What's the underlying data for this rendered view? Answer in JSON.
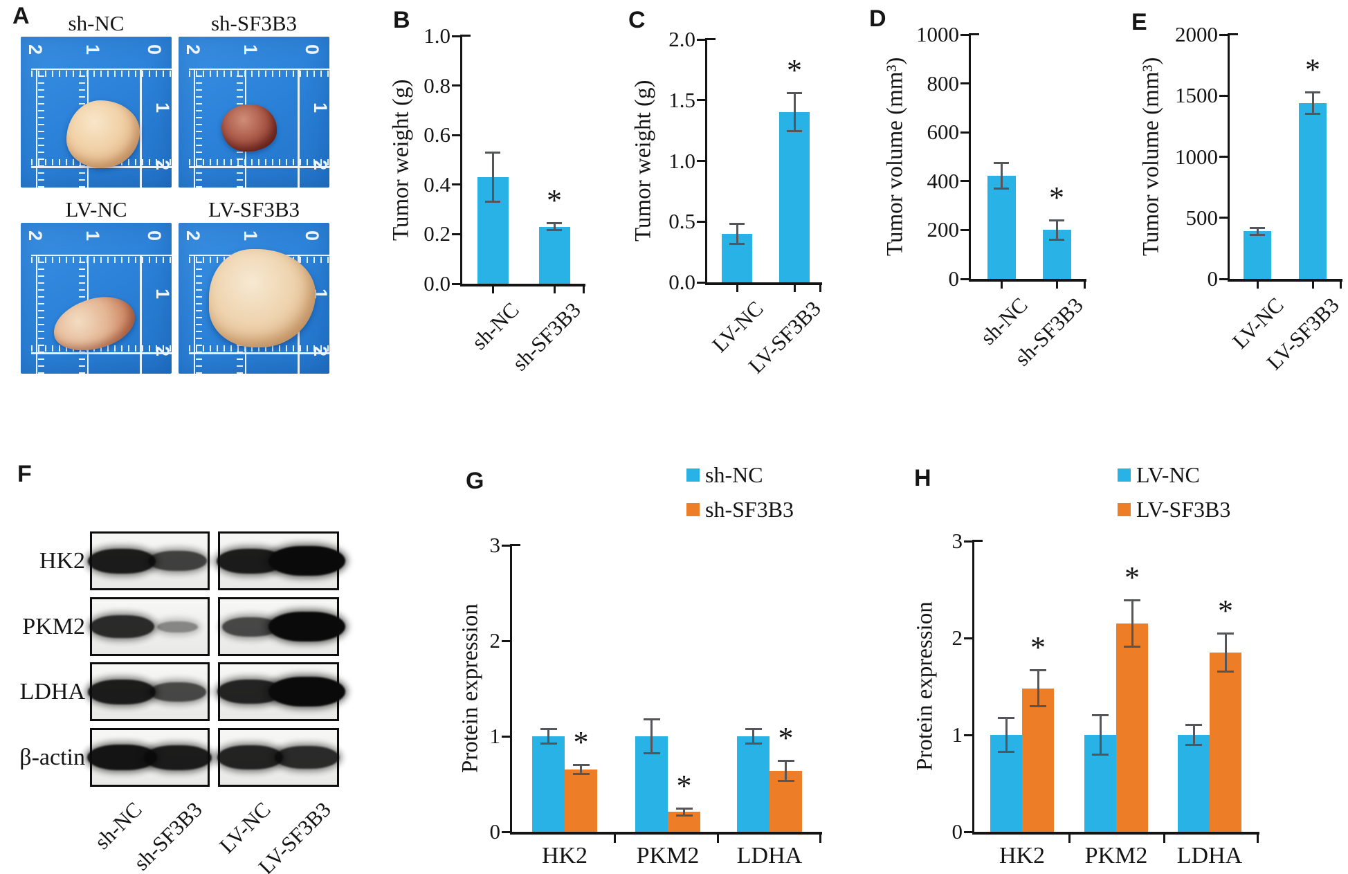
{
  "panels": {
    "a": "A",
    "b": "B",
    "c": "C",
    "d": "D",
    "e": "E",
    "f": "F",
    "g": "G",
    "h": "H"
  },
  "colors": {
    "bar_blue": "#29b2e5",
    "bar_orange": "#ee7d28",
    "error_bar": "#55565a",
    "photo_background": "#2c83d9",
    "ruler_white": "#edf5ff"
  },
  "panel_a": {
    "photos": [
      {
        "title": "sh-NC",
        "tumor": 0
      },
      {
        "title": "sh-SF3B3",
        "tumor": 1
      },
      {
        "title": "LV-NC",
        "tumor": 2
      },
      {
        "title": "LV-SF3B3",
        "tumor": 3
      }
    ],
    "ruler_numbers_top": [
      "2",
      "1",
      "0"
    ],
    "ruler_numbers_right": [
      "1",
      "2"
    ]
  },
  "chart_data": [
    {
      "id": "B",
      "type": "bar",
      "title": "",
      "ylabel": "Tumor weight (g)",
      "categories": [
        "sh-NC",
        "sh-SF3B3"
      ],
      "values": [
        0.43,
        0.23
      ],
      "errors": [
        0.1,
        0.015
      ],
      "significance": [
        "",
        "*"
      ],
      "ylim": [
        0,
        1.0
      ],
      "yticks": [
        "0.0",
        "0.2",
        "0.4",
        "0.6",
        "0.8",
        "1.0"
      ],
      "bar_color": "#29b2e5",
      "grid": false
    },
    {
      "id": "C",
      "type": "bar",
      "title": "",
      "ylabel": "Tumor weight (g)",
      "categories": [
        "LV-NC",
        "LV-SF3B3"
      ],
      "values": [
        0.4,
        1.4
      ],
      "errors": [
        0.085,
        0.16
      ],
      "significance": [
        "",
        "*"
      ],
      "ylim": [
        0,
        2.0
      ],
      "yticks": [
        "0.0",
        "0.5",
        "1.0",
        "1.5",
        "2.0"
      ],
      "bar_color": "#29b2e5",
      "grid": false
    },
    {
      "id": "D",
      "type": "bar",
      "title": "",
      "ylabel": "Tumor volume (mm³)",
      "categories": [
        "sh-NC",
        "sh-SF3B3"
      ],
      "values": [
        422,
        200
      ],
      "errors": [
        55,
        42
      ],
      "significance": [
        "",
        "*"
      ],
      "ylim": [
        0,
        1000
      ],
      "yticks": [
        "0",
        "200",
        "400",
        "600",
        "800",
        "1000"
      ],
      "bar_color": "#29b2e5",
      "grid": false
    },
    {
      "id": "E",
      "type": "bar",
      "title": "",
      "ylabel": "Tumor volume (mm³)",
      "categories": [
        "LV-NC",
        "LV-SF3B3"
      ],
      "values": [
        390,
        1440
      ],
      "errors": [
        32,
        90
      ],
      "significance": [
        "",
        "*"
      ],
      "ylim": [
        0,
        2000
      ],
      "yticks": [
        "0",
        "500",
        "1000",
        "1500",
        "2000"
      ],
      "bar_color": "#29b2e5",
      "grid": false
    },
    {
      "id": "G",
      "type": "grouped_bar",
      "title": "",
      "ylabel": "Protein expression",
      "categories": [
        "HK2",
        "PKM2",
        "LDHA"
      ],
      "ylim": [
        0,
        3
      ],
      "yticks": [
        "0",
        "1",
        "2",
        "3"
      ],
      "legend_position": "top-right",
      "grid": false,
      "series": [
        {
          "name": "sh-NC",
          "color": "#29b2e5",
          "values": [
            1.0,
            1.0,
            1.0
          ],
          "errors": [
            0.08,
            0.18,
            0.08
          ],
          "significance": [
            "",
            "",
            ""
          ]
        },
        {
          "name": "sh-SF3B3",
          "color": "#ee7d28",
          "values": [
            0.65,
            0.21,
            0.64
          ],
          "errors": [
            0.05,
            0.04,
            0.11
          ],
          "significance": [
            "*",
            "*",
            "*"
          ]
        }
      ]
    },
    {
      "id": "H",
      "type": "grouped_bar",
      "title": "",
      "ylabel": "Protein expression",
      "categories": [
        "HK2",
        "PKM2",
        "LDHA"
      ],
      "ylim": [
        0,
        3
      ],
      "yticks": [
        "0",
        "1",
        "2",
        "3"
      ],
      "legend_position": "top-right",
      "grid": false,
      "series": [
        {
          "name": "LV-NC",
          "color": "#29b2e5",
          "values": [
            1.0,
            1.0,
            1.0
          ],
          "errors": [
            0.18,
            0.21,
            0.11
          ],
          "significance": [
            "",
            "",
            ""
          ]
        },
        {
          "name": "LV-SF3B3",
          "color": "#ee7d28",
          "values": [
            1.48,
            2.15,
            1.85
          ],
          "errors": [
            0.19,
            0.24,
            0.2
          ],
          "significance": [
            "*",
            "*",
            "*"
          ]
        }
      ]
    }
  ],
  "panel_f": {
    "row_labels": [
      "HK2",
      "PKM2",
      "LDHA",
      "β-actin"
    ],
    "lane_labels": [
      "sh-NC",
      "sh-SF3B3",
      "LV-NC",
      "LV-SF3B3"
    ],
    "band_intensities": [
      [
        1.0,
        0.75,
        1.0,
        1.25
      ],
      [
        0.9,
        0.25,
        0.7,
        1.25
      ],
      [
        1.0,
        0.7,
        0.95,
        1.25
      ],
      [
        1.05,
        1.0,
        0.95,
        0.9
      ]
    ]
  }
}
